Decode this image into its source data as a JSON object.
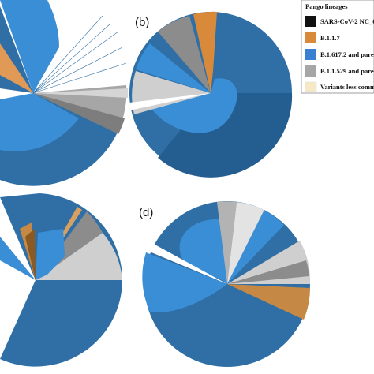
{
  "colors": {
    "dark_blue": "#2f6fa6",
    "dark_blue_deep": "#245d8f",
    "mid_blue": "#3a8ed6",
    "light_blue": "#4a9be0",
    "orange": "#d8893a",
    "brown": "#9a6a2c",
    "gray": "#a6a6a6",
    "dark_gray": "#7d7d7d",
    "light_gray": "#cfcfcf",
    "cream": "#f7e8c6",
    "black": "#111111"
  },
  "panels": [
    {
      "label": ""
    },
    {
      "label": "(b)"
    },
    {
      "label": ""
    },
    {
      "label": "(d)"
    }
  ],
  "legend": {
    "title": "Pango lineages",
    "items": [
      {
        "label": "SARS-CoV-2 NC_0",
        "color": "#111111"
      },
      {
        "label": "B.1.1.7",
        "color": "#d8893a"
      },
      {
        "label": "B.1.617.2 and pare",
        "color": "#3a7fd0"
      },
      {
        "label": "B.1.1.529 and pare",
        "color": "#a6a6a6"
      },
      {
        "label": "Variants less comm",
        "color": "#f7e8c6"
      }
    ]
  }
}
